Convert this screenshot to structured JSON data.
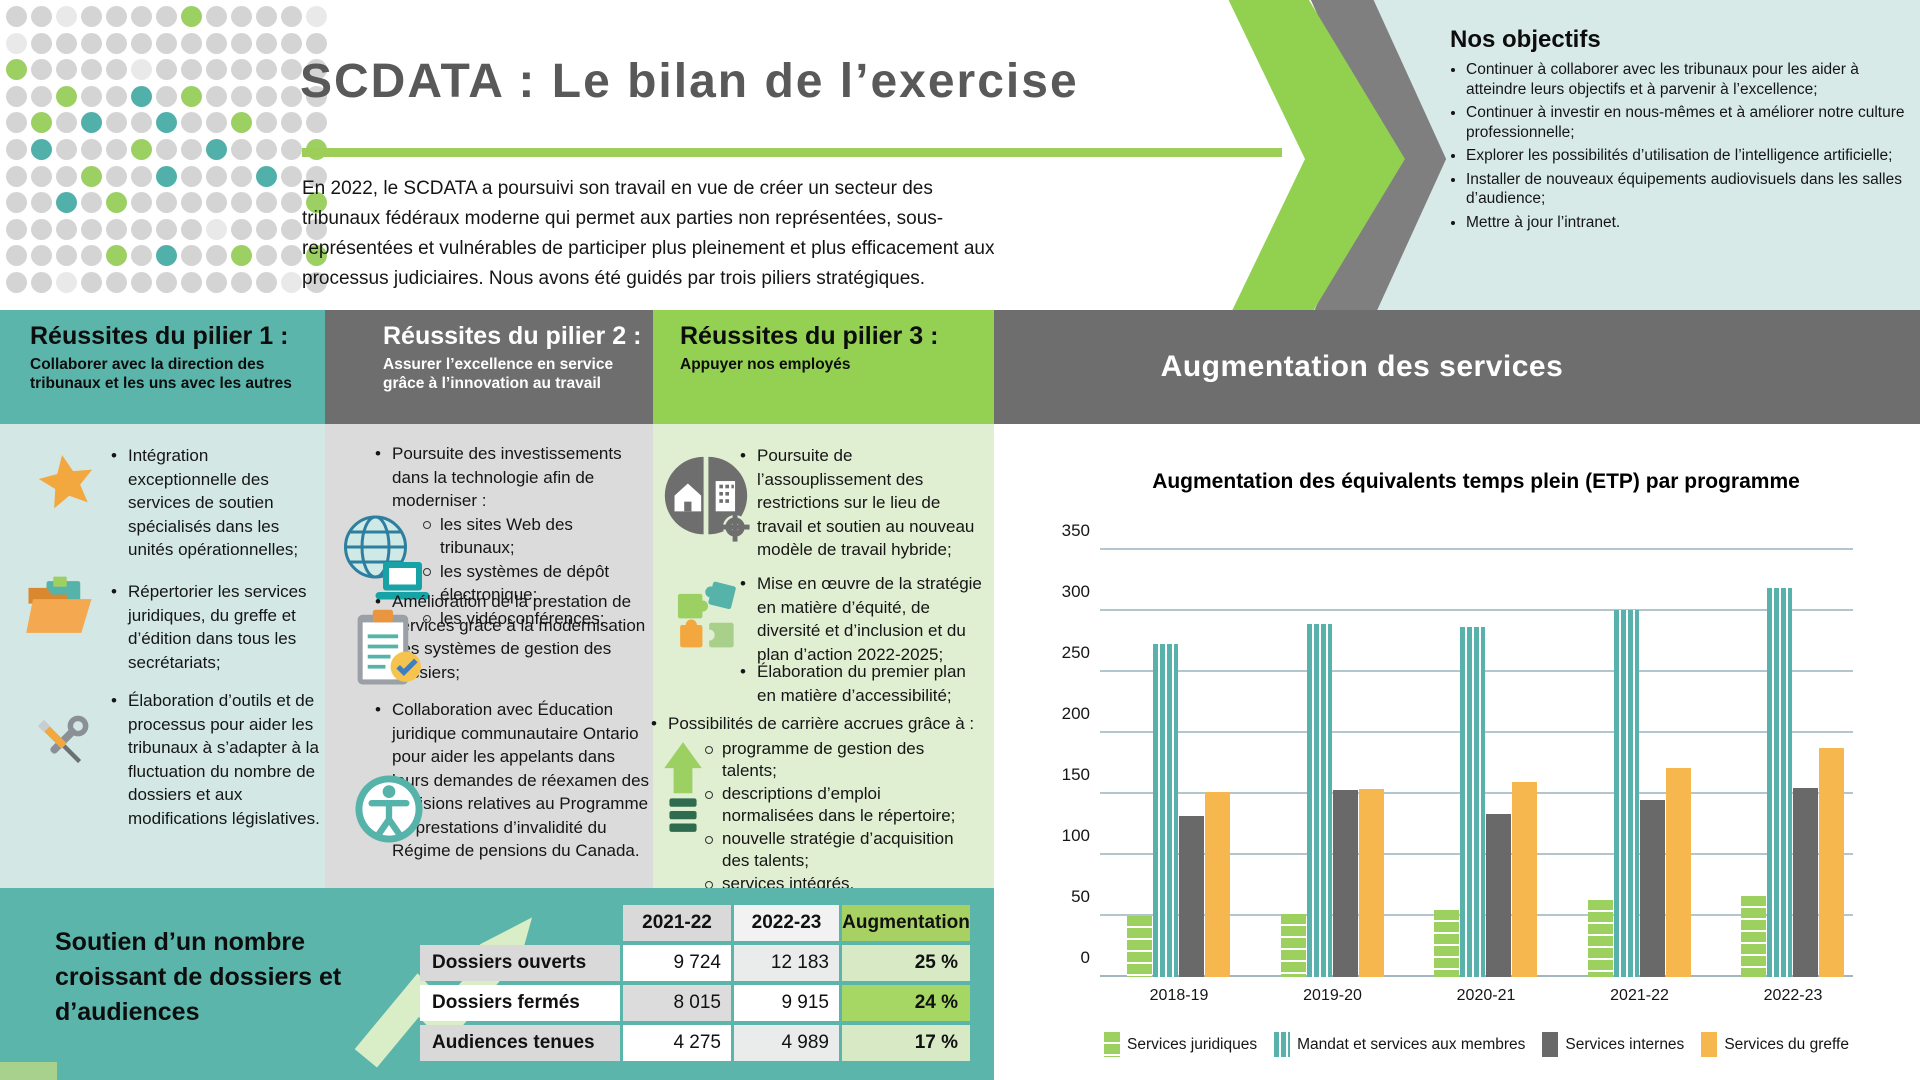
{
  "header": {
    "title": "SCDATA : Le bilan de l’exercise",
    "intro": "En 2022, le SCDATA a poursuivi son travail en vue de créer un secteur des tribunaux fédéraux moderne qui permet aux parties non représentées, sous-représentées et vulnérables de participer plus pleinement et plus efficacement aux processus judiciaires. Nous avons été guidés par trois piliers stratégiques.",
    "accent_color": "#9dce58"
  },
  "objectives": {
    "title": "Nos objectifs",
    "items": [
      "Continuer à collaborer avec les tribunaux pour les aider à atteindre leurs objectifs et à parvenir à l’excellence;",
      "Continuer à investir en nous-mêmes et à améliorer notre culture professionnelle;",
      "Explorer les possibilités d’utilisation de l’intelligence artificielle;",
      "Installer de nouveaux équipements audiovisuels dans les salles d’audience;",
      "Mettre à jour l’intranet."
    ]
  },
  "pillars": [
    {
      "title": "Réussites du pilier 1 :",
      "subtitle": "Collaborer avec la direction des tribunaux et les uns avec les autres",
      "items": [
        {
          "icon": "star-icon",
          "text": "Intégration exceptionnelle des services de soutien spécialisés dans les unités opérationnelles;"
        },
        {
          "icon": "folder-icon",
          "text": "Répertorier les services juridiques, du greffe et d’édition dans tous les secrétariats;"
        },
        {
          "icon": "tools-icon",
          "text": "Élaboration d’outils et de processus pour aider les tribunaux à s’adapter à la fluctuation du nombre de dossiers et aux modifications législatives."
        }
      ]
    },
    {
      "title": "Réussites du pilier 2 :",
      "subtitle": "Assurer l’excellence en service grâce à l’innovation au travail",
      "items": [
        {
          "icon": "globe-laptop-icon",
          "text": "Poursuite des investissements dans la technologie afin de moderniser :",
          "sub": [
            "les sites Web des tribunaux;",
            "les systèmes de dépôt électronique;",
            "les vidéoconférences;"
          ]
        },
        {
          "icon": "clipboard-check-icon",
          "text": "Amélioration de la prestation de services grâce à la modernisation des systèmes de gestion des dossiers;"
        },
        {
          "icon": "accessibility-icon",
          "text": "Collaboration avec Éducation juridique communautaire Ontario pour aider les appelants dans leurs demandes de réexamen des décisions relatives au Programme de prestations d’invalidité du Régime de pensions du Canada."
        }
      ]
    },
    {
      "title": "Réussites du pilier 3 :",
      "subtitle": "Appuyer nos employés",
      "items": [
        {
          "icon": "workplace-icon",
          "text": "Poursuite de l’assouplissement des restrictions sur le lieu de travail et soutien au nouveau modèle de travail hybride;"
        },
        {
          "icon": "puzzle-icon",
          "text": "Mise en œuvre de la stratégie en matière d’équité, de diversité et d’inclusion et du plan d’action 2022-2025;"
        },
        {
          "icon": null,
          "text": "Élaboration du premier plan en matière d’accessibilité;"
        }
      ],
      "career": {
        "icon": "growth-arrow-icon",
        "text": "Possibilités de carrière accrues grâce à :",
        "sub": [
          "programme de gestion des talents;",
          "descriptions d’emploi normalisées dans le répertoire;",
          "nouvelle stratégie d’acquisition des talents;",
          "services intégrés."
        ]
      }
    }
  ],
  "services_banner": {
    "title": "Augmentation des services"
  },
  "chart_data": {
    "type": "bar",
    "title": "Augmentation des équivalents temps plein (ETP) par programme",
    "categories": [
      "2018-19",
      "2019-20",
      "2020-21",
      "2021-22",
      "2022-23"
    ],
    "series": [
      {
        "name": "Services juridiques",
        "color": "#9cd05f",
        "pattern": "horizontal-stripes",
        "values": [
          50,
          52,
          55,
          63,
          66
        ]
      },
      {
        "name": "Mandat et services aux membres",
        "color": "#58b2ab",
        "pattern": "vertical-stripes",
        "values": [
          273,
          289,
          287,
          301,
          319
        ]
      },
      {
        "name": "Services internes",
        "color": "#696969",
        "pattern": "solid",
        "values": [
          132,
          153,
          134,
          145,
          155
        ]
      },
      {
        "name": "Services du greffe",
        "color": "#f6b84e",
        "pattern": "solid",
        "values": [
          152,
          154,
          160,
          171,
          188
        ]
      }
    ],
    "ylim": [
      0,
      350
    ],
    "ytick_step": 50,
    "grid": true,
    "legend_position": "bottom",
    "gridline_color": "#b4c6cd"
  },
  "support": {
    "heading": "Soutien d’un nombre croissant de dossiers et d’audiences",
    "table": {
      "columns": [
        "2021-22",
        "2022-23",
        "Augmentation"
      ],
      "rows": [
        {
          "label": "Dossiers ouverts",
          "y2122": "9 724",
          "y2223": "12 183",
          "aug": "25 %"
        },
        {
          "label": "Dossiers fermés",
          "y2122": "8 015",
          "y2223": "9 915",
          "aug": "24 %"
        },
        {
          "label": "Audiences tenues",
          "y2122": "4 275",
          "y2223": "4 989",
          "aug": "17 %"
        }
      ]
    }
  },
  "dots": {
    "colors": {
      ".": "#d4d4d4",
      "o": "#e9e9e9",
      "G": "#9cd063",
      "T": "#52b0aa"
    },
    "pattern": [
      "..o....G....o",
      "o............",
      "G....o.......",
      "..G..T.G.....",
      ".G.T..T..G...",
      ".T...G..T...G",
      "...G..T...T..",
      "..T.G.......G",
      "........o....",
      "....G.T..G..G",
      "..o........o."
    ]
  },
  "theme": {
    "teal": "#5bb5ab",
    "teal_light": "#d3e8e4",
    "gray": "#6e6e6e",
    "gray_light": "#dbdbdb",
    "green": "#94d052",
    "green_light": "#e0eed2",
    "objectives_bg": "#d8eae8",
    "table_green_header": "#a8d164",
    "table_green_light": "#d8eac5",
    "table_green_strong": "#a6d765",
    "pale_arrow": "#d9eec6"
  }
}
